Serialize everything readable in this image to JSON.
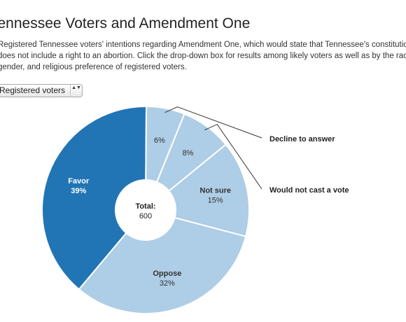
{
  "header": {
    "title": "Tennessee Voters and Amendment One",
    "intro_lines": [
      "Registered Tennessee voters' intentions regarding Amendment One, which would state that Tennessee's constitution",
      "does not include a right to an abortion. Click the drop-down box for results among likely voters as well as by the race,",
      "gender, and religious preference of registered voters."
    ]
  },
  "filter": {
    "selected": "Registered voters",
    "arrows": "▲▼"
  },
  "chart_data": {
    "type": "pie",
    "donut": true,
    "center": {
      "label": "Total:",
      "value": "600"
    },
    "slices": [
      {
        "name": "Favor",
        "value": 39,
        "label": "39%",
        "color": "#2175b5",
        "text_color": "#ffffff",
        "show_name": true
      },
      {
        "name": "Decline to answer",
        "value": 6,
        "label": "6%",
        "color": "#aecde6",
        "text_color": "#333333",
        "show_name": false,
        "callout": true
      },
      {
        "name": "Would not cast a vote",
        "value": 8,
        "label": "8%",
        "color": "#aecde6",
        "text_color": "#333333",
        "show_name": false,
        "callout": true
      },
      {
        "name": "Not sure",
        "value": 15,
        "label": "15%",
        "color": "#aecde6",
        "text_color": "#333333",
        "show_name": true
      },
      {
        "name": "Oppose",
        "value": 32,
        "label": "32%",
        "color": "#aecde6",
        "text_color": "#333333",
        "show_name": true
      }
    ]
  }
}
